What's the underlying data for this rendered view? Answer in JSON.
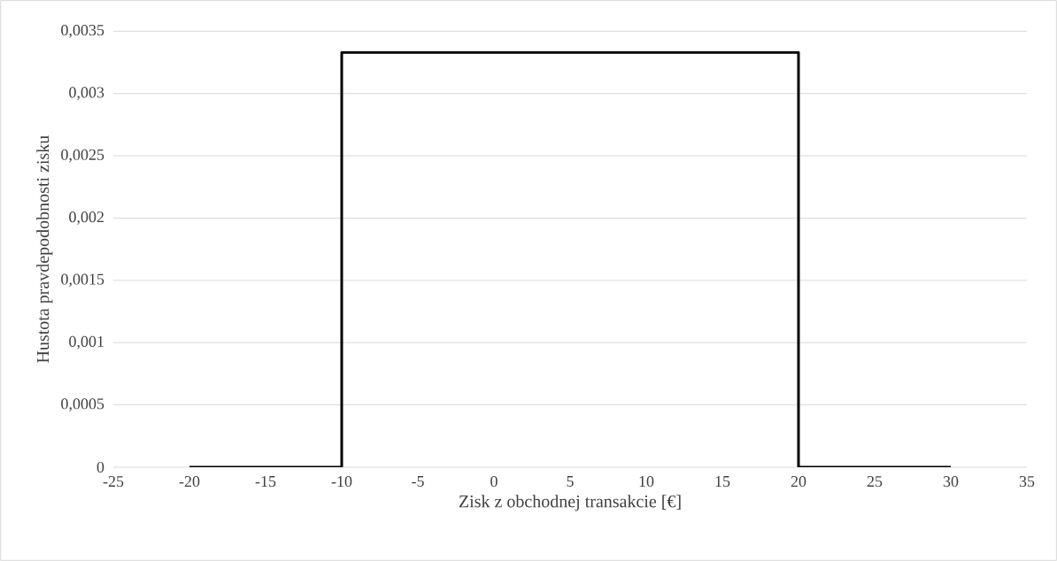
{
  "chart_data": {
    "type": "line",
    "xlabel": "Zisk z obchodnej transakcie [€]",
    "ylabel": "Hustota pravdepodobnosti zisku",
    "x": [
      -20,
      -10,
      -10,
      20,
      20,
      30
    ],
    "series": [
      {
        "color": "#000000",
        "values": [
          0,
          0,
          0.00333,
          0.00333,
          0,
          0
        ]
      }
    ],
    "xlim": [
      -25,
      35
    ],
    "xticks": [
      -25,
      -20,
      -15,
      -10,
      -5,
      0,
      5,
      10,
      15,
      20,
      25,
      30,
      35
    ],
    "ylim": [
      0,
      0.0035
    ],
    "yticks": [
      0,
      {
        "value": 0.0005,
        "label": "0,0005"
      },
      {
        "value": 0.001,
        "label": "0,001"
      },
      {
        "value": 0.0015,
        "label": "0,0015"
      },
      {
        "value": 0.002,
        "label": "0,002"
      },
      {
        "value": 0.0025,
        "label": "0,0025"
      },
      {
        "value": 0.003,
        "label": "0,003"
      },
      {
        "value": 0.0035,
        "label": "0,0035"
      }
    ],
    "grid": "y",
    "marker": "none",
    "line_style": "solid"
  }
}
